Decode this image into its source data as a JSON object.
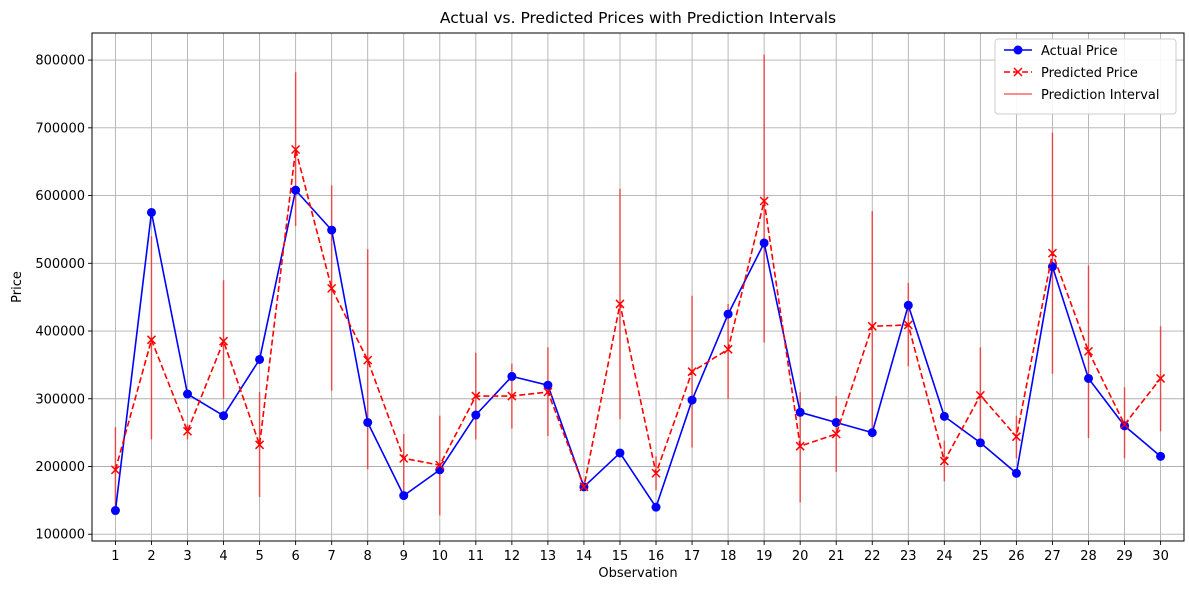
{
  "chart_data": {
    "type": "line",
    "title": "Actual vs. Predicted Prices with Prediction Intervals",
    "xlabel": "Observation",
    "ylabel": "Price",
    "x": [
      1,
      2,
      3,
      4,
      5,
      6,
      7,
      8,
      9,
      10,
      11,
      12,
      13,
      14,
      15,
      16,
      17,
      18,
      19,
      20,
      21,
      22,
      23,
      24,
      25,
      26,
      27,
      28,
      29,
      30
    ],
    "xlim": [
      0.35,
      30.65
    ],
    "ylim": [
      90000,
      840000
    ],
    "yticks": [
      100000,
      200000,
      300000,
      400000,
      500000,
      600000,
      700000,
      800000
    ],
    "grid": true,
    "legend_position": "top-right",
    "series": [
      {
        "name": "Actual Price",
        "style": "solid line with circle markers",
        "color": "#0000ff",
        "values": [
          135000,
          575000,
          307000,
          275000,
          358000,
          608000,
          549000,
          265000,
          157000,
          195000,
          276000,
          333000,
          320000,
          170000,
          220000,
          140000,
          298000,
          425000,
          530000,
          280000,
          265000,
          250000,
          438000,
          274000,
          235000,
          190000,
          495000,
          330000,
          260000,
          215000
        ]
      },
      {
        "name": "Predicted Price",
        "style": "dashed line with x markers",
        "color": "#ff0000",
        "values": [
          195000,
          387000,
          252000,
          385000,
          232000,
          668000,
          463000,
          357000,
          212000,
          202000,
          304000,
          304000,
          310000,
          170000,
          440000,
          190000,
          340000,
          373000,
          592000,
          230000,
          248000,
          407000,
          409000,
          208000,
          305000,
          244000,
          515000,
          370000,
          262000,
          330000
        ]
      }
    ],
    "intervals": {
      "name": "Prediction Interval",
      "color": "#ff0000",
      "lower": [
        140000,
        240000,
        240000,
        300000,
        155000,
        555000,
        312000,
        196000,
        160000,
        128000,
        240000,
        256000,
        245000,
        168000,
        270000,
        165000,
        228000,
        300000,
        383000,
        147000,
        192000,
        243000,
        348000,
        178000,
        242000,
        212000,
        337000,
        242000,
        212000,
        252000
      ],
      "upper": [
        258000,
        540000,
        262000,
        475000,
        310000,
        782000,
        615000,
        521000,
        248000,
        275000,
        368000,
        352000,
        376000,
        172000,
        610000,
        215000,
        452000,
        440000,
        808000,
        310000,
        304000,
        577000,
        471000,
        238000,
        376000,
        275000,
        693000,
        497000,
        317000,
        407000
      ]
    }
  }
}
